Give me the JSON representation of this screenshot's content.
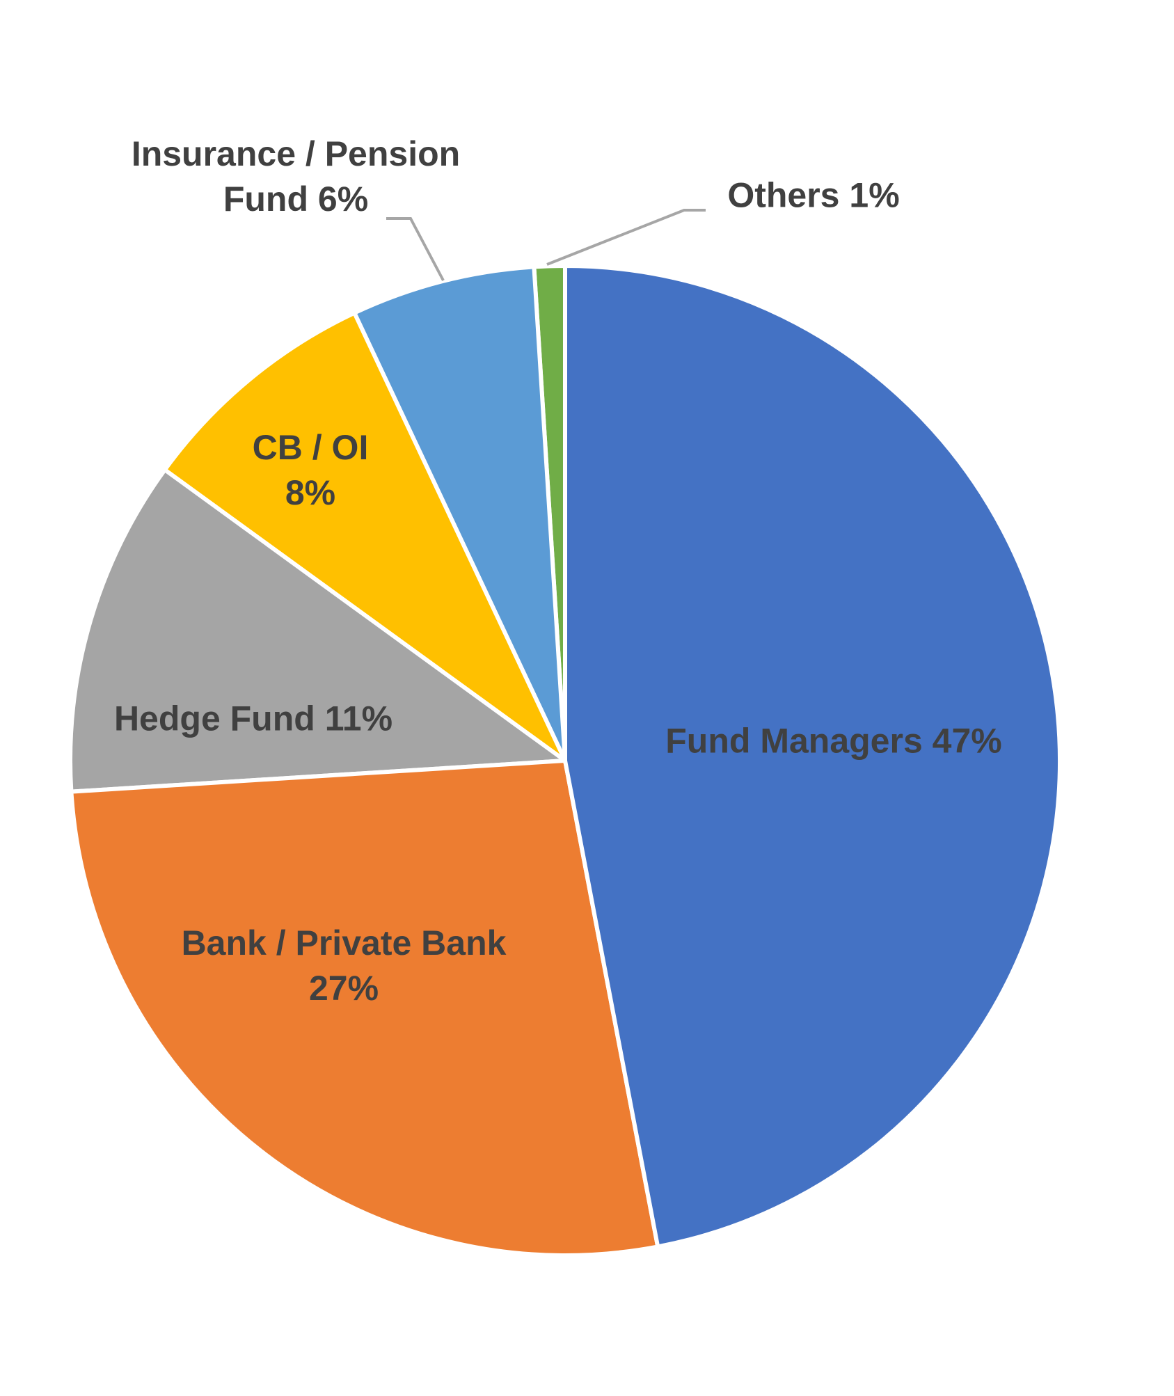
{
  "chart_data": {
    "type": "pie",
    "categories": [
      "Fund Managers",
      "Bank / Private Bank",
      "Hedge Fund",
      "CB / OI",
      "Insurance / Pension Fund",
      "Others"
    ],
    "values": [
      47,
      27,
      11,
      8,
      6,
      1
    ],
    "value_labels": [
      "47%",
      "27%",
      "11%",
      "8%",
      "6%",
      "1%"
    ],
    "colors": [
      "#4472c4",
      "#ed7d31",
      "#a5a5a5",
      "#ffc000",
      "#5b9bd5",
      "#70ad47"
    ]
  }
}
